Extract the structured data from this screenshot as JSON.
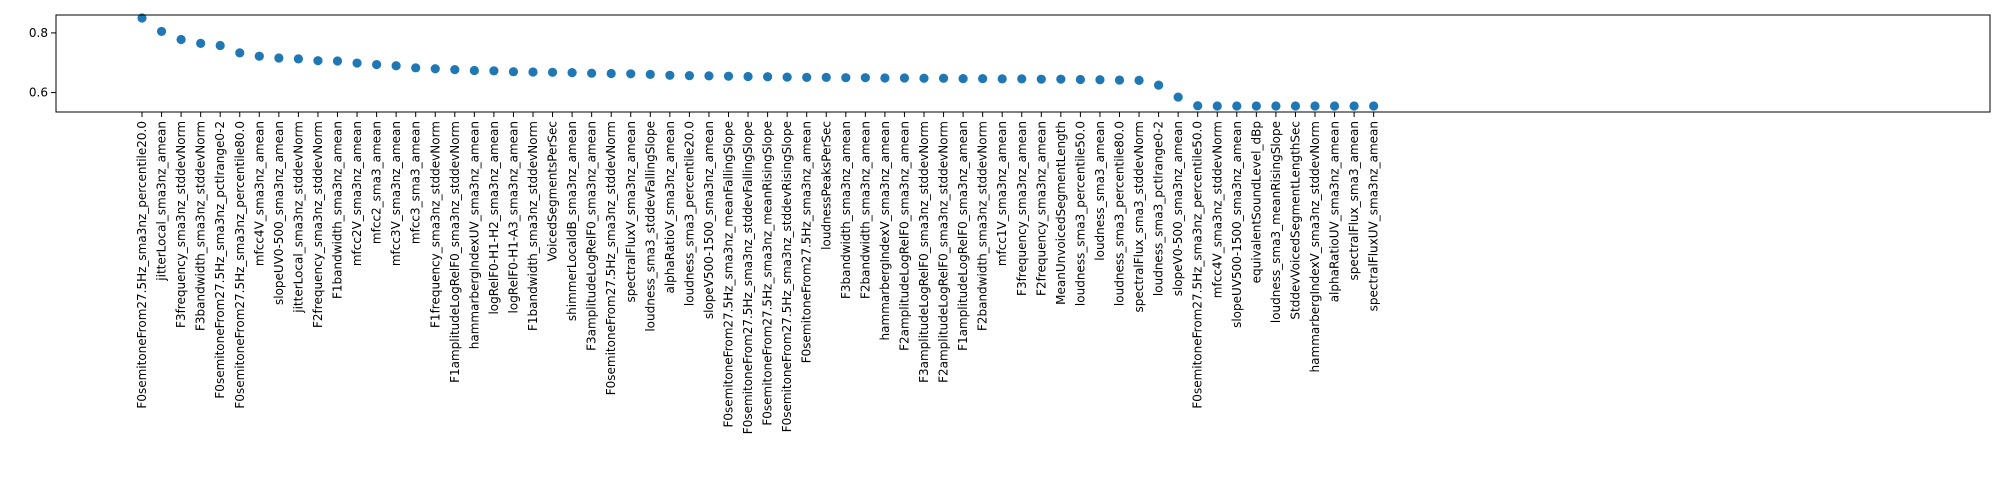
{
  "chart_data": {
    "type": "scatter",
    "title": "",
    "xlabel": "",
    "ylabel": "",
    "ylim": [
      0.535,
      0.86
    ],
    "yticks": [
      0.6,
      0.8
    ],
    "grid": false,
    "legend": "none",
    "marker_color": "#1f77b4",
    "categories": [
      "F0semitoneFrom27.5Hz_sma3nz_percentile20.0",
      "jitterLocal_sma3nz_amean",
      "F3frequency_sma3nz_stddevNorm",
      "F3bandwidth_sma3nz_stddevNorm",
      "F0semitoneFrom27.5Hz_sma3nz_pctlrange0-2",
      "F0semitoneFrom27.5Hz_sma3nz_percentile80.0",
      "mfcc4V_sma3nz_amean",
      "slopeUV0-500_sma3nz_amean",
      "jitterLocal_sma3nz_stddevNorm",
      "F2frequency_sma3nz_stddevNorm",
      "F1bandwidth_sma3nz_amean",
      "mfcc2V_sma3nz_amean",
      "mfcc2_sma3_amean",
      "mfcc3V_sma3nz_amean",
      "mfcc3_sma3_amean",
      "F1frequency_sma3nz_stddevNorm",
      "F1amplitudeLogRelF0_sma3nz_stddevNorm",
      "hammarbergIndexUV_sma3nz_amean",
      "logRelF0-H1-H2_sma3nz_amean",
      "logRelF0-H1-A3_sma3nz_amean",
      "F1bandwidth_sma3nz_stddevNorm",
      "VoicedSegmentsPerSec",
      "shimmerLocaldB_sma3nz_amean",
      "F3amplitudeLogRelF0_sma3nz_amean",
      "F0semitoneFrom27.5Hz_sma3nz_stddevNorm",
      "spectralFluxV_sma3nz_amean",
      "loudness_sma3_stddevFallingSlope",
      "alphaRatioV_sma3nz_amean",
      "loudness_sma3_percentile20.0",
      "slopeV500-1500_sma3nz_amean",
      "F0semitoneFrom27.5Hz_sma3nz_meanFallingSlope",
      "F0semitoneFrom27.5Hz_sma3nz_stddevFallingSlope",
      "F0semitoneFrom27.5Hz_sma3nz_meanRisingSlope",
      "F0semitoneFrom27.5Hz_sma3nz_stddevRisingSlope",
      "F0semitoneFrom27.5Hz_sma3nz_amean",
      "loudnessPeaksPerSec",
      "F3bandwidth_sma3nz_amean",
      "F2bandwidth_sma3nz_amean",
      "hammarbergIndexV_sma3nz_amean",
      "F2amplitudeLogRelF0_sma3nz_amean",
      "F3amplitudeLogRelF0_sma3nz_stddevNorm",
      "F2amplitudeLogRelF0_sma3nz_stddevNorm",
      "F1amplitudeLogRelF0_sma3nz_amean",
      "F2bandwidth_sma3nz_stddevNorm",
      "mfcc1V_sma3nz_amean",
      "F3frequency_sma3nz_amean",
      "F2frequency_sma3nz_amean",
      "MeanUnvoicedSegmentLength",
      "loudness_sma3_percentile50.0",
      "loudness_sma3_amean",
      "loudness_sma3_percentile80.0",
      "spectralFlux_sma3_stddevNorm",
      "loudness_sma3_pctlrange0-2",
      "slopeV0-500_sma3nz_amean",
      "F0semitoneFrom27.5Hz_sma3nz_percentile50.0",
      "mfcc4V_sma3nz_stddevNorm",
      "slopeUV500-1500_sma3nz_amean",
      "equivalentSoundLevel_dBp",
      "loudness_sma3_meanRisingSlope",
      "StddevVoicedSegmentLengthSec",
      "hammarbergIndexV_sma3nz_stddevNorm",
      "alphaRatioUV_sma3nz_amean",
      "spectralFlux_sma3_amean",
      "spectralFluxUV_sma3nz_amean"
    ],
    "values": [
      0.85,
      0.805,
      0.778,
      0.765,
      0.758,
      0.733,
      0.722,
      0.716,
      0.713,
      0.707,
      0.706,
      0.699,
      0.694,
      0.69,
      0.683,
      0.68,
      0.677,
      0.674,
      0.673,
      0.67,
      0.669,
      0.668,
      0.667,
      0.665,
      0.664,
      0.663,
      0.661,
      0.658,
      0.657,
      0.656,
      0.655,
      0.654,
      0.653,
      0.652,
      0.651,
      0.651,
      0.65,
      0.65,
      0.649,
      0.649,
      0.648,
      0.648,
      0.647,
      0.647,
      0.646,
      0.646,
      0.645,
      0.645,
      0.644,
      0.643,
      0.642,
      0.641,
      0.625,
      0.585,
      0.556,
      0.555,
      0.555,
      0.555,
      0.555,
      0.555,
      0.555,
      0.555,
      0.555,
      0.555
    ]
  }
}
